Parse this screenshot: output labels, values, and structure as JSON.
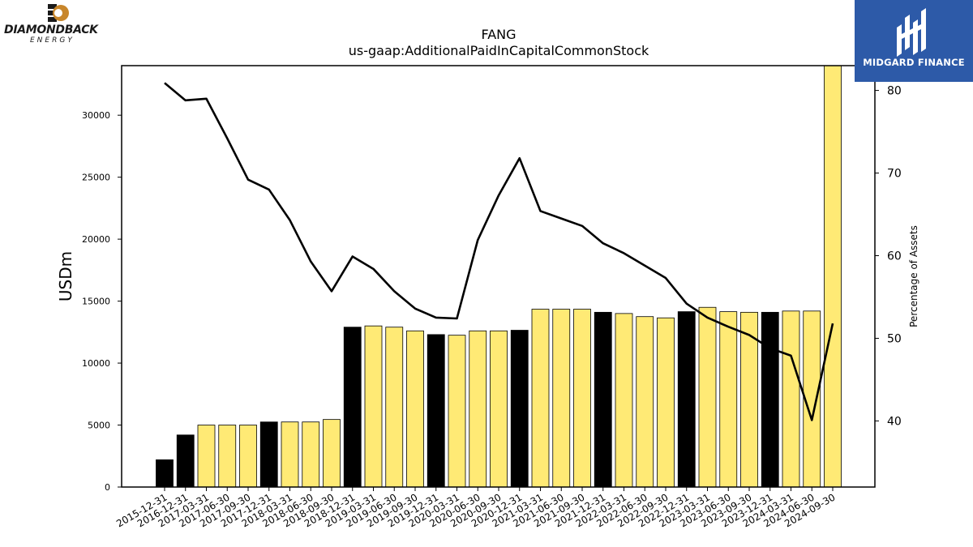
{
  "logos": {
    "left_name": "DIAMONDBACK",
    "left_sub": "ENERGY",
    "right_name": "MIDGARD FINANCE",
    "right_bg": "#2d5aa8"
  },
  "chart_data": {
    "type": "bar",
    "title": "FANG",
    "subtitle": "us-gaap:AdditionalPaidInCapitalCommonStock",
    "ylabel": "USDm",
    "y2label": "Percentage of Assets",
    "ylim": [
      0,
      34000
    ],
    "y2lim": [
      32,
      83
    ],
    "yticks": [
      0,
      5000,
      10000,
      15000,
      20000,
      25000,
      30000
    ],
    "y2ticks": [
      40,
      50,
      60,
      70,
      80
    ],
    "categories": [
      "2015-12-31",
      "2016-12-31",
      "2017-03-31",
      "2017-06-30",
      "2017-09-30",
      "2017-12-31",
      "2018-03-31",
      "2018-06-30",
      "2018-09-30",
      "2018-12-31",
      "2019-03-31",
      "2019-06-30",
      "2019-09-30",
      "2019-12-31",
      "2020-03-31",
      "2020-06-30",
      "2020-09-30",
      "2020-12-31",
      "2021-03-31",
      "2021-06-30",
      "2021-09-30",
      "2021-12-31",
      "2022-03-31",
      "2022-06-30",
      "2022-09-30",
      "2022-12-31",
      "2023-03-31",
      "2023-06-30",
      "2023-09-30",
      "2023-12-31",
      "2024-03-31",
      "2024-06-30",
      "2024-09-30"
    ],
    "series": [
      {
        "type": "bar",
        "values": [
          2200,
          4200,
          5000,
          5000,
          5000,
          5250,
          5250,
          5250,
          5450,
          12900,
          13000,
          12900,
          12600,
          12300,
          12250,
          12600,
          12600,
          12650,
          14350,
          14350,
          14350,
          14100,
          14000,
          13750,
          13650,
          14150,
          14500,
          14150,
          14100,
          14100,
          14200,
          14200,
          34000
        ]
      },
      {
        "type": "line",
        "axis": "right",
        "values": [
          80.9,
          78.8,
          79.0,
          74.2,
          69.2,
          68.0,
          64.3,
          59.3,
          55.7,
          59.9,
          58.4,
          55.7,
          53.6,
          52.5,
          52.4,
          61.9,
          67.3,
          71.8,
          65.4,
          64.5,
          63.6,
          61.5,
          60.3,
          58.8,
          57.3,
          54.2,
          52.5,
          51.4,
          50.4,
          48.8,
          47.9,
          40.1,
          51.8
        ]
      }
    ],
    "bar_colors": {
      "year_end": "#000000",
      "quarter": "#ffea75"
    },
    "line_color": "#000000",
    "grid": false
  }
}
